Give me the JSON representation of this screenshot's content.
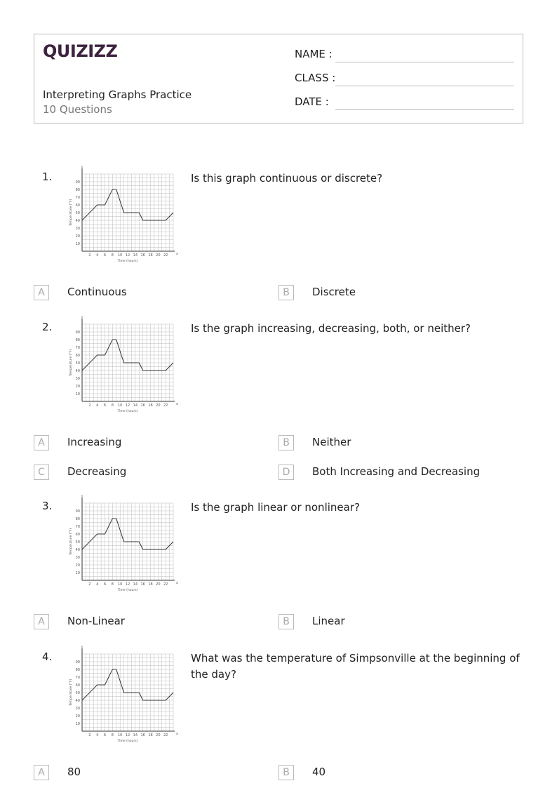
{
  "header": {
    "logo": "QUIZIZZ",
    "title": "Interpreting Graphs Practice",
    "subtitle": "10 Questions",
    "fields": [
      "NAME :",
      "CLASS :",
      "DATE  :"
    ]
  },
  "graph": {
    "type": "line",
    "xlabel": "Time (hours)",
    "ylabel": "Temperature (°F)",
    "x_axis_letter": "x",
    "y_axis_letter": "y",
    "xticks": [
      2,
      4,
      6,
      8,
      10,
      12,
      14,
      16,
      18,
      20,
      22
    ],
    "yticks": [
      10,
      20,
      30,
      40,
      50,
      60,
      70,
      80,
      90
    ],
    "xlim": [
      0,
      24
    ],
    "ylim": [
      0,
      100
    ],
    "grid": true,
    "x": [
      0,
      4,
      6,
      8,
      9,
      11,
      15,
      16,
      22,
      24
    ],
    "y": [
      40,
      60,
      60,
      80,
      80,
      50,
      50,
      40,
      40,
      50
    ]
  },
  "questions": [
    {
      "number": "1.",
      "text": "Is this graph continuous or discrete?",
      "options": [
        {
          "letter": "A",
          "text": "Continuous"
        },
        {
          "letter": "B",
          "text": "Discrete"
        }
      ]
    },
    {
      "number": "2.",
      "text": "Is the graph increasing, decreasing, both, or neither?",
      "options": [
        {
          "letter": "A",
          "text": "Increasing"
        },
        {
          "letter": "B",
          "text": "Neither"
        },
        {
          "letter": "C",
          "text": "Decreasing"
        },
        {
          "letter": "D",
          "text": "Both Increasing and Decreasing"
        }
      ]
    },
    {
      "number": "3.",
      "text": "Is the graph linear or nonlinear?",
      "options": [
        {
          "letter": "A",
          "text": "Non-Linear"
        },
        {
          "letter": "B",
          "text": "Linear"
        }
      ]
    },
    {
      "number": "4.",
      "text": "What was the temperature of Simpsonville at the beginning of the day?",
      "options": [
        {
          "letter": "A",
          "text": "80"
        },
        {
          "letter": "B",
          "text": "40"
        }
      ]
    }
  ]
}
